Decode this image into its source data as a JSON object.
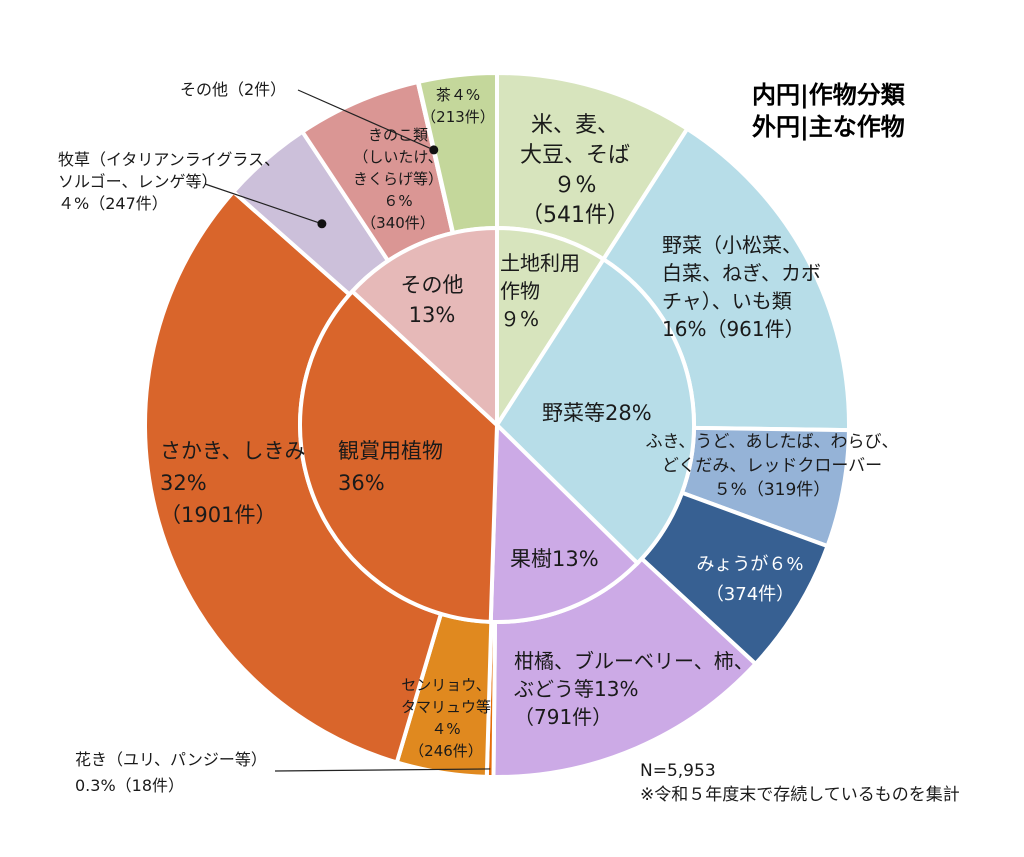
{
  "chart_data": {
    "type": "pie",
    "subtype": "donut-nested",
    "title_lines": [
      "内円|作物分類",
      "外円|主な作物"
    ],
    "notes": [
      "N=5,953",
      "※令和５年度末で存続しているものを集計"
    ],
    "inner": [
      {
        "key": "land",
        "lines": [
          "土地利用",
          "作物",
          "９%"
        ],
        "value": 9,
        "color": "#d7e4bd"
      },
      {
        "key": "veg",
        "lines": [
          "野菜等28%"
        ],
        "value": 28,
        "color": "#b7dde8"
      },
      {
        "key": "fruit",
        "lines": [
          "果樹13%"
        ],
        "value": 13,
        "color": "#ccaae6"
      },
      {
        "key": "orn",
        "lines": [
          "観賞用植物",
          "36%"
        ],
        "value": 36,
        "color": "#d9652b"
      },
      {
        "key": "other",
        "lines": [
          "その他",
          "13%"
        ],
        "value": 13,
        "color": "#e6b9b8"
      }
    ],
    "outer": [
      {
        "key": "rice",
        "lines": [
          "米、麦、",
          "大豆、そば",
          "９%",
          "（541件）"
        ],
        "value": 541,
        "color": "#d7e4bd"
      },
      {
        "key": "vegmain",
        "lines": [
          "野菜（小松菜、",
          "白菜、ねぎ、カボ",
          "チャ）、いも類",
          "16%（961件）"
        ],
        "value": 961,
        "color": "#b7dde8"
      },
      {
        "key": "fuki",
        "lines": [
          "ふき、うど、あしたば、わらび、",
          "どくだみ、レッドクローバー",
          "５%（319件）"
        ],
        "value": 319,
        "color": "#95b3d7"
      },
      {
        "key": "myoga",
        "lines": [
          "みょうが６%",
          "（374件）"
        ],
        "value": 374,
        "color": "#376092"
      },
      {
        "key": "citrus",
        "lines": [
          "柑橘、ブルーベリー、柿、",
          "ぶどう等13%",
          "（791件）"
        ],
        "value": 791,
        "color": "#ccaae6"
      },
      {
        "key": "hanaki",
        "lines": [
          "花き（ユリ、パンジー等）",
          "0.3%（18件）"
        ],
        "value": 18,
        "color": "#e36c09"
      },
      {
        "key": "senryo",
        "lines": [
          "センリョウ、",
          "タマリュウ等",
          "４%",
          "（246件）"
        ],
        "value": 246,
        "color": "#e0891f"
      },
      {
        "key": "sakaki",
        "lines": [
          "さかき、しきみ",
          "32%",
          "（1901件）"
        ],
        "value": 1901,
        "color": "#d9652b"
      },
      {
        "key": "bokuso",
        "lines": [
          "牧草（イタリアンライグラス、",
          "ソルゴー、レンゲ等）",
          "４%（247件）"
        ],
        "value": 247,
        "color": "#ccc0da"
      },
      {
        "key": "kinoko",
        "lines": [
          "きのこ類",
          "（しいたけ、",
          "きくらげ等）",
          "６%",
          "（340件）"
        ],
        "value": 340,
        "color": "#da9694"
      },
      {
        "key": "sonota2",
        "lines": [
          "その他（2件）"
        ],
        "value": 2,
        "color": "#da9694"
      },
      {
        "key": "tea",
        "lines": [
          "茶４%",
          "（213件）"
        ],
        "value": 213,
        "color": "#c4d79b"
      }
    ]
  }
}
